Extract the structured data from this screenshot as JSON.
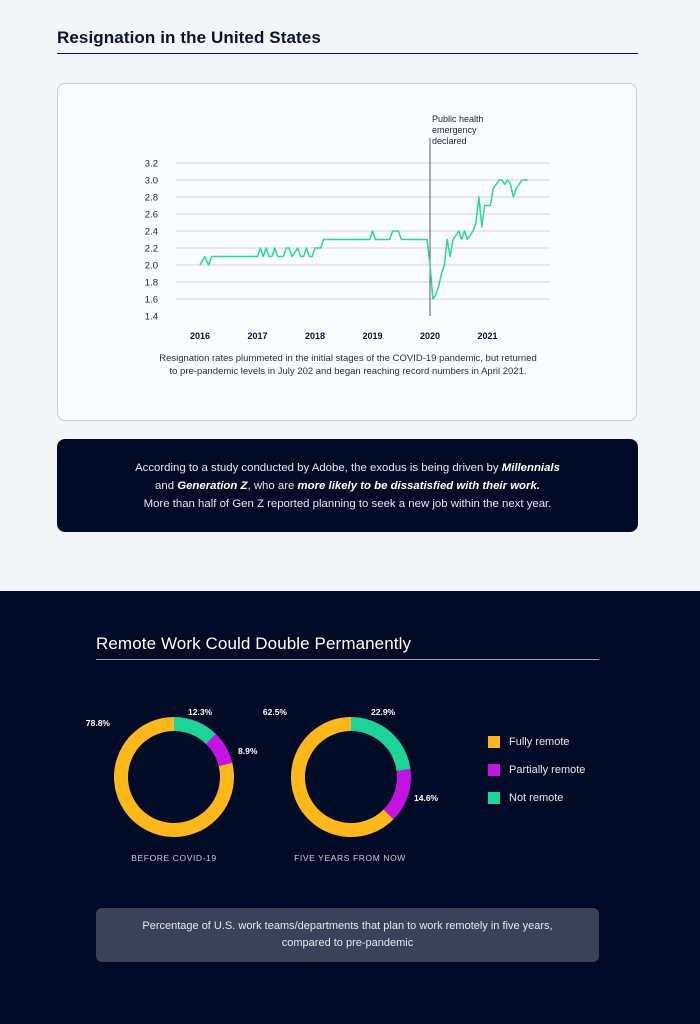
{
  "section1": {
    "title": "Resignation in the United States",
    "caption": "Resignation rates plummeted in the initial stages of the COVID-19 pandemic, but returned to pre-pandemic levels in July 202 and began reaching record numbers in April 2021.",
    "quote_part1": "According to a study conducted by Adobe, the exodus is being driven by ",
    "quote_bold1": "Millennials",
    "quote_part2": " and ",
    "quote_bold2": "Generation Z",
    "quote_part3": ", who are ",
    "quote_bold3": "more likely to be dissatisfied with their work.",
    "quote_line3": "More than half of Gen Z reported planning to seek a new job within the next year."
  },
  "section2": {
    "title": "Remote Work Could Double Permanently",
    "note": "Percentage of U.S. work teams/departments that plan to work remotely in five years, compared to pre-pandemic"
  },
  "chart_data": [
    {
      "type": "line",
      "title": "",
      "xlabel": "",
      "ylabel": "",
      "ylim": [
        1.4,
        3.2
      ],
      "yticks": [
        "3.2",
        "3.0",
        "2.8",
        "2.6",
        "2.4",
        "2.2",
        "2.0",
        "1.8",
        "1.6",
        "1.4"
      ],
      "xticks": [
        "2016",
        "2017",
        "2018",
        "2019",
        "2020",
        "2021"
      ],
      "grid": true,
      "line_color": "#2ed49a",
      "annotation": {
        "x": 2020.0,
        "text_lines": [
          "Public health",
          "emergency",
          "declared"
        ]
      },
      "series": [
        {
          "x": [
            2016.0,
            2016.08,
            2016.15,
            2016.2,
            2016.4,
            2016.6,
            2016.8,
            2016.95,
            2017.0,
            2017.05,
            2017.1,
            2017.15,
            2017.2,
            2017.25,
            2017.3,
            2017.35,
            2017.45,
            2017.5,
            2017.55,
            2017.6,
            2017.7,
            2017.75,
            2017.8,
            2017.85,
            2017.9,
            2017.95,
            2018.0,
            2018.05,
            2018.1,
            2018.15,
            2018.2,
            2018.3,
            2018.5,
            2018.7,
            2018.9,
            2018.95,
            2019.0,
            2019.05,
            2019.1,
            2019.2,
            2019.3,
            2019.35,
            2019.4,
            2019.45,
            2019.5,
            2019.6,
            2019.8,
            2019.95,
            2020.0,
            2020.05,
            2020.1,
            2020.15,
            2020.2,
            2020.25,
            2020.3,
            2020.35,
            2020.4,
            2020.45,
            2020.5,
            2020.55,
            2020.6,
            2020.65,
            2020.7,
            2020.75,
            2020.8,
            2020.85,
            2020.9,
            2020.95,
            2021.0,
            2021.05,
            2021.1,
            2021.15,
            2021.2,
            2021.25,
            2021.3,
            2021.35,
            2021.4,
            2021.45,
            2021.5,
            2021.55,
            2021.6,
            2021.65,
            2021.7
          ],
          "y": [
            2.0,
            2.1,
            2.0,
            2.1,
            2.1,
            2.1,
            2.1,
            2.1,
            2.1,
            2.2,
            2.1,
            2.2,
            2.1,
            2.1,
            2.2,
            2.1,
            2.1,
            2.2,
            2.2,
            2.1,
            2.2,
            2.1,
            2.1,
            2.2,
            2.1,
            2.1,
            2.2,
            2.2,
            2.2,
            2.3,
            2.3,
            2.3,
            2.3,
            2.3,
            2.3,
            2.3,
            2.4,
            2.3,
            2.3,
            2.3,
            2.3,
            2.4,
            2.4,
            2.4,
            2.3,
            2.3,
            2.3,
            2.3,
            2.0,
            1.6,
            1.65,
            1.75,
            1.9,
            2.0,
            2.3,
            2.1,
            2.3,
            2.35,
            2.4,
            2.3,
            2.4,
            2.3,
            2.35,
            2.4,
            2.5,
            2.8,
            2.45,
            2.7,
            2.7,
            2.7,
            2.9,
            2.95,
            3.0,
            3.0,
            2.95,
            3.0,
            2.95,
            2.8,
            2.9,
            2.95,
            3.0,
            3.0,
            3.0
          ]
        }
      ]
    },
    {
      "type": "pie",
      "label": "BEFORE COVID-19",
      "categories": [
        "Fully remote",
        "Partially remote",
        "Not remote"
      ],
      "values": [
        78.8,
        8.9,
        12.3
      ],
      "value_labels": [
        "78.8%",
        "8.9%",
        "12.3%"
      ],
      "colors": [
        "#ffb81c",
        "#c413e3",
        "#1ed39a"
      ]
    },
    {
      "type": "pie",
      "label": "FIVE YEARS FROM NOW",
      "categories": [
        "Fully remote",
        "Partially remote",
        "Not remote"
      ],
      "values": [
        62.5,
        14.6,
        22.9
      ],
      "value_labels": [
        "62.5%",
        "14.6%",
        "22.9%"
      ],
      "colors": [
        "#ffb81c",
        "#c413e3",
        "#1ed39a"
      ]
    }
  ],
  "legend": [
    {
      "label": "Fully remote",
      "color": "#ffb81c"
    },
    {
      "label": "Partially remote",
      "color": "#c413e3"
    },
    {
      "label": "Not remote",
      "color": "#1ed39a"
    }
  ]
}
